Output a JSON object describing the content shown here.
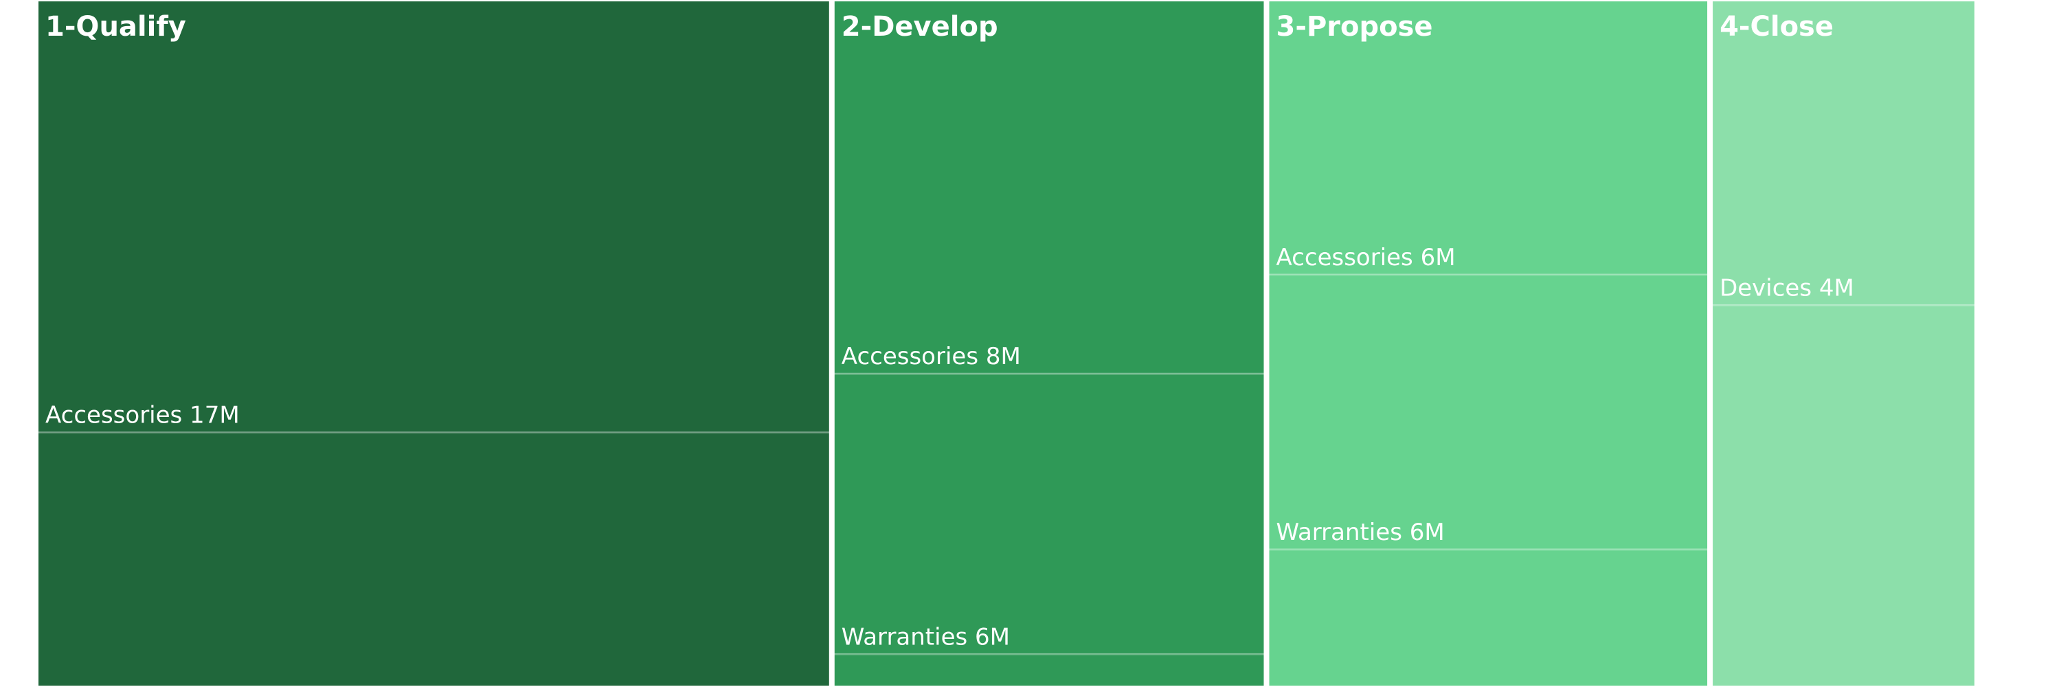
{
  "chart_data": {
    "type": "treemap",
    "groups": [
      {
        "name": "1-Qualify",
        "color": "#20673B",
        "children": [
          {
            "label": "Accessories 17M",
            "name": "Accessories",
            "value": 17,
            "display": "17M"
          },
          {
            "label": "",
            "name": "",
            "value": 10,
            "display": ""
          }
        ]
      },
      {
        "name": "2-Develop",
        "color": "#2F9957",
        "children": [
          {
            "label": "Accessories 8M",
            "name": "Accessories",
            "value": 8,
            "display": "8M"
          },
          {
            "label": "Warranties 6M",
            "name": "Warranties",
            "value": 6,
            "display": "6M"
          },
          {
            "label": "",
            "name": "",
            "value": 0.7,
            "display": ""
          }
        ]
      },
      {
        "name": "3-Propose",
        "color": "#66D38F",
        "children": [
          {
            "label": "Accessories 6M",
            "name": "Accessories",
            "value": 6,
            "display": "6M"
          },
          {
            "label": "Warranties 6M",
            "name": "Warranties",
            "value": 6,
            "display": "6M"
          },
          {
            "label": "",
            "name": "",
            "value": 3,
            "display": ""
          }
        ]
      },
      {
        "name": "4-Close",
        "color": "#8CDFAA",
        "children": [
          {
            "label": "Devices 4M",
            "name": "Devices",
            "value": 4,
            "display": "4M"
          },
          {
            "label": "",
            "name": "",
            "value": 5,
            "display": ""
          }
        ]
      }
    ]
  }
}
